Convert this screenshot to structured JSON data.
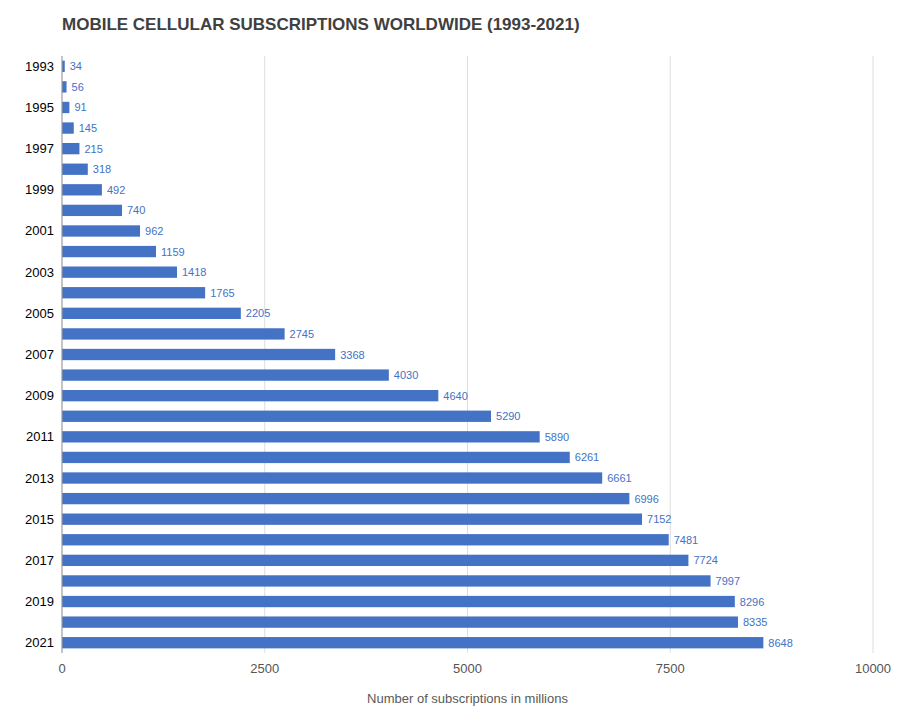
{
  "chart_data": {
    "type": "bar",
    "orientation": "horizontal",
    "title": "MOBILE CELLULAR SUBSCRIPTIONS WORLDWIDE (1993-2021)",
    "x_label": "Number of subscriptions in millions",
    "categories": [
      "1993",
      null,
      "1995",
      null,
      "1997",
      null,
      "1999",
      null,
      "2001",
      null,
      "2003",
      null,
      "2005",
      null,
      "2007",
      null,
      "2009",
      null,
      "2011",
      null,
      "2013",
      null,
      "2015",
      null,
      "2017",
      null,
      "2019",
      null,
      "2021"
    ],
    "values": [
      34,
      56,
      91,
      145,
      215,
      318,
      492,
      740,
      962,
      1159,
      1418,
      1765,
      2205,
      2745,
      3368,
      4030,
      4640,
      5290,
      5890,
      6261,
      6661,
      6996,
      7152,
      7481,
      7724,
      7997,
      8296,
      8335,
      8648
    ],
    "color": "#4472C4",
    "xlim": [
      0,
      10000
    ],
    "xticks": [
      0,
      2500,
      5000,
      7500,
      10000
    ],
    "grid": true,
    "data_labels": true
  }
}
